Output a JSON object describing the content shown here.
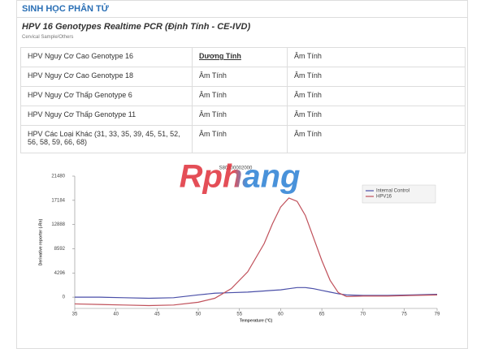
{
  "header": {
    "title": "SINH HỌC PHÂN TỬ"
  },
  "test": {
    "title": "HPV 16 Genotypes Realtime PCR (Định Tính - CE-IVD)",
    "sample": "Cervical Sample/Others"
  },
  "table": {
    "rows": [
      [
        "HPV Nguy Cơ Cao Genotype 16",
        "Dương Tính",
        "Âm Tính"
      ],
      [
        "HPV Nguy Cơ Cao Genotype 18",
        "Âm Tính",
        "Âm Tính"
      ],
      [
        "HPV Nguy Cơ Thấp Genotype 6",
        "Âm Tính",
        "Âm Tính"
      ],
      [
        "HPV Nguy Cơ Thấp Genotype 11",
        "Âm Tính",
        "Âm Tính"
      ],
      [
        "HPV Các Loại Khác (31, 33, 35, 39, 45, 51, 52, 56, 58, 59, 66, 68)",
        "Âm Tính",
        "Âm Tính"
      ]
    ]
  },
  "watermark": "Rphang",
  "chart_data": {
    "type": "line",
    "title": "S80300002000",
    "x_label": "Temperature (°C)",
    "y_label": "Derivative reporter (-Rn)",
    "x": [
      35,
      38,
      41,
      44,
      47,
      50,
      52,
      54,
      56,
      58,
      59,
      60,
      61,
      62,
      63,
      64,
      65,
      66,
      67,
      68,
      70,
      73,
      76,
      79
    ],
    "series": [
      {
        "name": "Internal Control",
        "color": "#4a4fa8",
        "values": [
          0,
          0,
          -100,
          -200,
          -100,
          400,
          700,
          800,
          900,
          1100,
          1200,
          1300,
          1500,
          1700,
          1700,
          1500,
          1200,
          900,
          600,
          400,
          300,
          300,
          400,
          500
        ]
      },
      {
        "name": "HPV16",
        "color": "#c0505a",
        "values": [
          -1200,
          -1300,
          -1400,
          -1500,
          -1400,
          -900,
          -200,
          1500,
          4500,
          9500,
          13000,
          16000,
          17600,
          17000,
          14500,
          10500,
          6500,
          3000,
          800,
          100,
          200,
          200,
          300,
          400
        ]
      }
    ],
    "xlim": [
      35,
      79
    ],
    "ylim": [
      -2000,
      21480
    ],
    "xticks": [
      35,
      40,
      45,
      50,
      55,
      60,
      65,
      70,
      75,
      79
    ],
    "yticks": [
      0,
      4296,
      8592,
      12888,
      17184,
      21480
    ],
    "legend": "upper right",
    "grid": false
  }
}
